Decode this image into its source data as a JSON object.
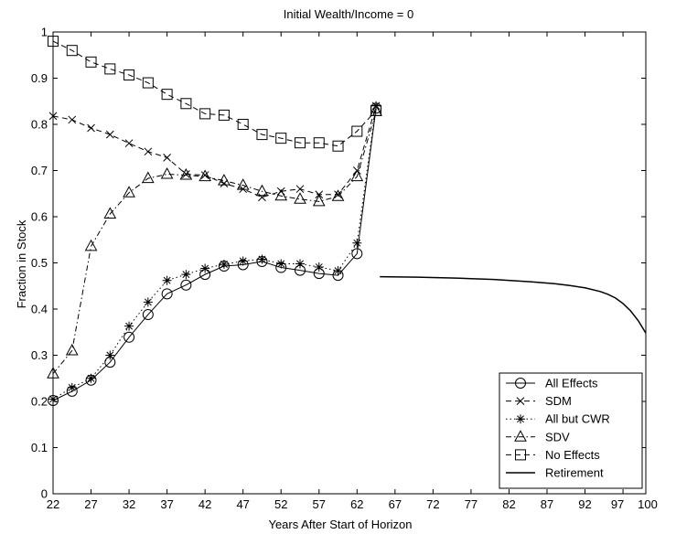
{
  "chart_data": {
    "type": "line",
    "title": "Initial Wealth/Income = 0",
    "xlabel": "Years After Start of Horizon",
    "ylabel": "Fraction in Stock",
    "xlim": [
      22,
      100
    ],
    "ylim": [
      0,
      1
    ],
    "xticks": [
      22,
      27,
      32,
      37,
      42,
      47,
      52,
      57,
      62,
      67,
      72,
      77,
      82,
      87,
      92,
      97,
      100
    ],
    "xtick_labels": [
      "22",
      "27",
      "32",
      "37",
      "42",
      "47",
      "52",
      "57",
      "62",
      "67",
      "72",
      "77",
      "82",
      "87",
      "92",
      "97",
      "100"
    ],
    "yticks": [
      0,
      0.1,
      0.2,
      0.3,
      0.4,
      0.5,
      0.6,
      0.7,
      0.8,
      0.9,
      1
    ],
    "ytick_labels": [
      "0",
      "0.1",
      "0.2",
      "0.3",
      "0.4",
      "0.5",
      "0.6",
      "0.7",
      "0.8",
      "0.9",
      "1"
    ],
    "grid": false,
    "legend_position": "bottom-right",
    "series": [
      {
        "name": "All Effects",
        "line": "solid",
        "marker": "circle",
        "x": [
          22,
          24.5,
          27,
          29.5,
          32,
          34.5,
          37,
          39.5,
          42,
          44.5,
          47,
          49.5,
          52,
          54.5,
          57,
          59.5,
          62,
          64.5
        ],
        "y": [
          0.202,
          0.222,
          0.246,
          0.285,
          0.339,
          0.388,
          0.433,
          0.452,
          0.475,
          0.493,
          0.496,
          0.503,
          0.49,
          0.484,
          0.477,
          0.473,
          0.52,
          0.835
        ]
      },
      {
        "name": "SDM",
        "line": "dashed",
        "marker": "x",
        "x": [
          22,
          24.5,
          27,
          29.5,
          32,
          34.5,
          37,
          39.5,
          42,
          44.5,
          47,
          49.5,
          52,
          54.5,
          57,
          59.5,
          62,
          64.5
        ],
        "y": [
          0.818,
          0.81,
          0.792,
          0.778,
          0.759,
          0.741,
          0.728,
          0.692,
          0.69,
          0.672,
          0.66,
          0.642,
          0.655,
          0.66,
          0.648,
          0.648,
          0.7,
          0.84
        ]
      },
      {
        "name": "All but CWR",
        "line": "dotted",
        "marker": "star",
        "x": [
          22,
          24.5,
          27,
          29.5,
          32,
          34.5,
          37,
          39.5,
          42,
          44.5,
          47,
          49.5,
          52,
          54.5,
          57,
          59.5,
          62,
          64.5
        ],
        "y": [
          0.205,
          0.23,
          0.25,
          0.3,
          0.363,
          0.415,
          0.462,
          0.475,
          0.488,
          0.497,
          0.504,
          0.508,
          0.498,
          0.498,
          0.491,
          0.483,
          0.543,
          0.84
        ]
      },
      {
        "name": "SDV",
        "line": "dashdot",
        "marker": "triangle",
        "x": [
          22,
          24.5,
          27,
          29.5,
          32,
          34.5,
          37,
          39.5,
          42,
          44.5,
          47,
          49.5,
          52,
          54.5,
          57,
          59.5,
          62,
          64.5
        ],
        "y": [
          0.26,
          0.31,
          0.536,
          0.606,
          0.652,
          0.683,
          0.692,
          0.69,
          0.687,
          0.678,
          0.668,
          0.655,
          0.645,
          0.638,
          0.633,
          0.644,
          0.687,
          0.828
        ]
      },
      {
        "name": "No Effects",
        "line": "dashed",
        "marker": "square",
        "x": [
          22,
          24.5,
          27,
          29.5,
          32,
          34.5,
          37,
          39.5,
          42,
          44.5,
          47,
          49.5,
          52,
          54.5,
          57,
          59.5,
          62,
          64.5
        ],
        "y": [
          0.98,
          0.96,
          0.935,
          0.92,
          0.907,
          0.89,
          0.865,
          0.845,
          0.823,
          0.82,
          0.8,
          0.778,
          0.77,
          0.76,
          0.76,
          0.753,
          0.785,
          0.83
        ]
      },
      {
        "name": "Retirement",
        "line": "solid",
        "marker": "none",
        "x": [
          65,
          70,
          75,
          80,
          85,
          88,
          90,
          92,
          94,
          95,
          96,
          97,
          98,
          99,
          100
        ],
        "y": [
          0.47,
          0.469,
          0.467,
          0.464,
          0.459,
          0.455,
          0.451,
          0.446,
          0.438,
          0.432,
          0.424,
          0.412,
          0.396,
          0.375,
          0.348
        ]
      }
    ]
  }
}
